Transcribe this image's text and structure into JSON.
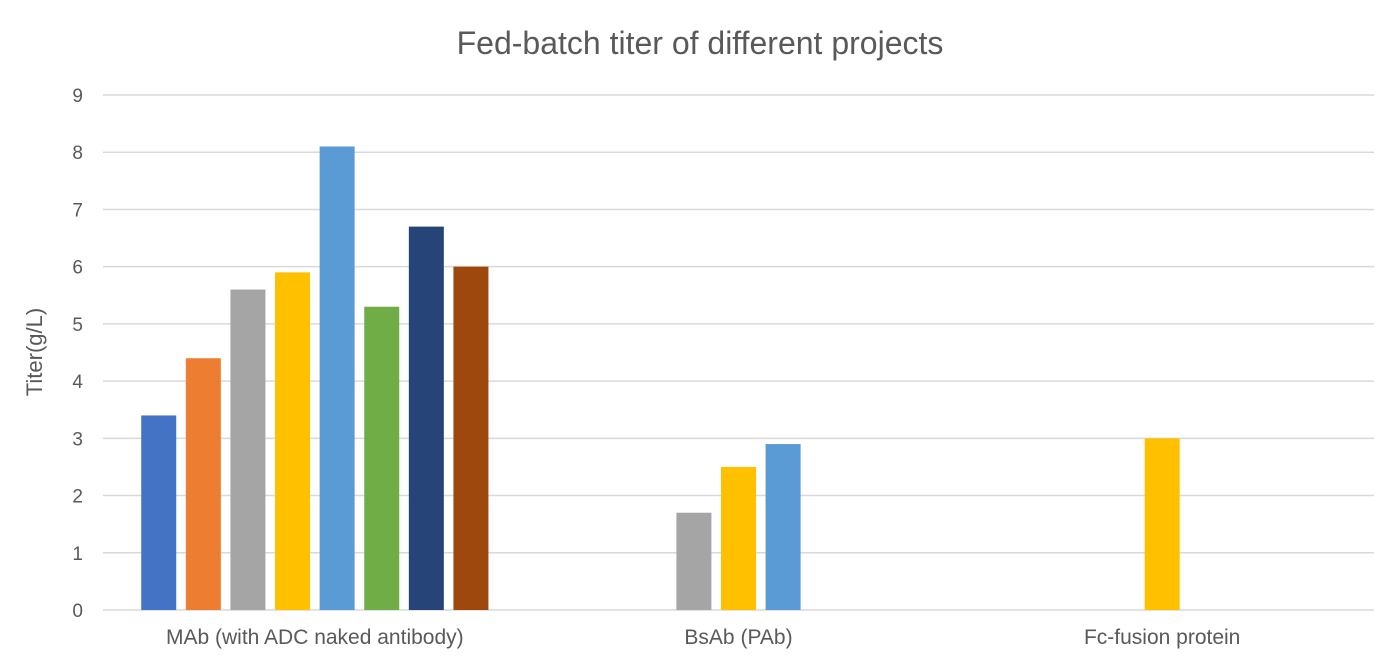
{
  "chart_data": {
    "type": "bar",
    "title": "Fed-batch titer of different projects",
    "ylabel": "Titer(g/L)",
    "xlabel": "",
    "ylim": [
      0,
      9
    ],
    "yticks": [
      0,
      1,
      2,
      3,
      4,
      5,
      6,
      7,
      8,
      9
    ],
    "grid": true,
    "legend": "none",
    "categories": [
      "MAb (with ADC naked antibody)",
      "BsAb (PAb)",
      "Fc-fusion protein"
    ],
    "series_colors": [
      "#4472c4",
      "#ed7d31",
      "#a5a5a5",
      "#ffc000",
      "#5b9bd5",
      "#70ad47",
      "#264478",
      "#9e480e"
    ],
    "series": [
      {
        "values": [
          3.4,
          null,
          null
        ]
      },
      {
        "values": [
          4.4,
          null,
          null
        ]
      },
      {
        "values": [
          5.6,
          1.7,
          null
        ]
      },
      {
        "values": [
          5.9,
          2.5,
          3.0
        ]
      },
      {
        "values": [
          8.1,
          2.9,
          null
        ]
      },
      {
        "values": [
          5.3,
          null,
          null
        ]
      },
      {
        "values": [
          6.7,
          null,
          null
        ]
      },
      {
        "values": [
          6.0,
          null,
          null
        ]
      }
    ]
  }
}
